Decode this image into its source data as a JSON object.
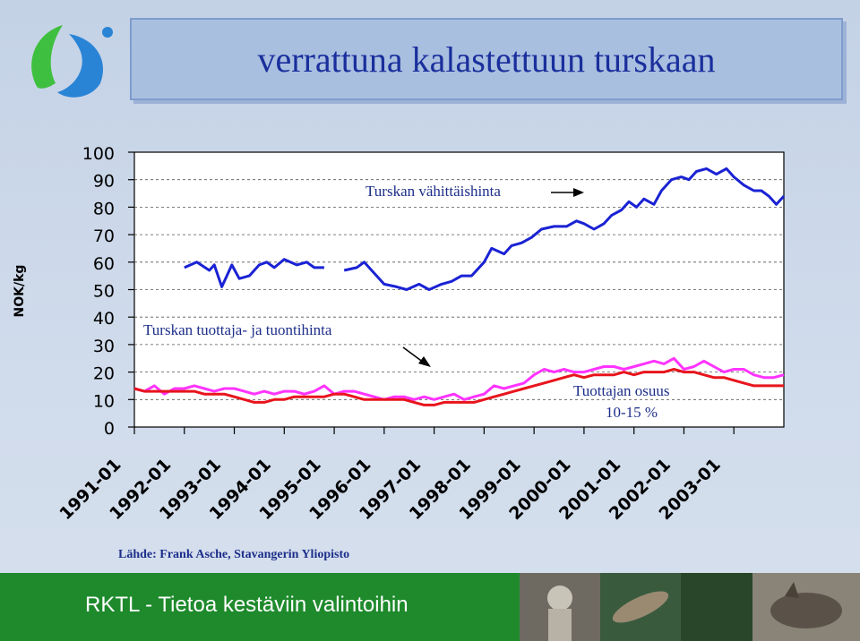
{
  "header": {
    "title": "verrattuna kalastettuun turskaan"
  },
  "source_note": "Lähde: Frank Asche, Stavangerin Yliopisto",
  "footer": {
    "text": "RKTL - Tietoa kestäviin valintoihin"
  },
  "colors": {
    "retail_line": "#1a22d4",
    "import_line": "#ff33ff",
    "producer_line": "#e8141c",
    "footer_bg": "#1e8a2c",
    "title_text": "#1a2f9c"
  },
  "chart_data": {
    "type": "line",
    "ylabel": "NOK/kg",
    "ylim": [
      0,
      100
    ],
    "yticks": [
      0,
      10,
      20,
      30,
      40,
      50,
      60,
      70,
      80,
      90,
      100
    ],
    "xticks": [
      "1991-01",
      "1992-01",
      "1993-01",
      "1994-01",
      "1995-01",
      "1996-01",
      "1997-01",
      "1998-01",
      "1999-01",
      "2000-01",
      "2001-01",
      "2002-01",
      "2003-01"
    ],
    "x_start_year": 1991,
    "grid": "horizontal-dashed",
    "annotations": [
      {
        "text": "Turskan vähittäishinta",
        "series": "Turskan vähittäishinta"
      },
      {
        "text": "Turskan tuottaja- ja tuontihinta",
        "series": "Turskan tuottaja- ja tuontihinta"
      },
      {
        "text": "Tuottajan osuus",
        "series": "producer"
      },
      {
        "text": "10-15 %",
        "series": "producer"
      }
    ],
    "series": [
      {
        "name": "Turskan vähittäishinta",
        "color": "#1a22d4",
        "segments": [
          [
            [
              1992.0,
              58
            ],
            [
              1992.25,
              60
            ],
            [
              1992.5,
              57
            ],
            [
              1992.6,
              59
            ],
            [
              1992.75,
              51
            ],
            [
              1992.95,
              59
            ],
            [
              1993.1,
              54
            ],
            [
              1993.3,
              55
            ],
            [
              1993.5,
              59
            ],
            [
              1993.65,
              60
            ],
            [
              1993.8,
              58
            ],
            [
              1994.0,
              61
            ],
            [
              1994.25,
              59
            ],
            [
              1994.45,
              60
            ],
            [
              1994.6,
              58
            ],
            [
              1994.8,
              58
            ]
          ],
          [
            [
              1995.2,
              57
            ],
            [
              1995.45,
              58
            ],
            [
              1995.6,
              60
            ],
            [
              1995.8,
              56
            ],
            [
              1996.0,
              52
            ],
            [
              1996.25,
              51
            ],
            [
              1996.45,
              50
            ],
            [
              1996.7,
              52
            ],
            [
              1996.9,
              50
            ],
            [
              1997.15,
              52
            ],
            [
              1997.35,
              53
            ],
            [
              1997.55,
              55
            ],
            [
              1997.75,
              55
            ],
            [
              1998.0,
              60
            ],
            [
              1998.15,
              65
            ],
            [
              1998.4,
              63
            ],
            [
              1998.55,
              66
            ],
            [
              1998.75,
              67
            ],
            [
              1998.95,
              69
            ],
            [
              1999.15,
              72
            ],
            [
              1999.4,
              73
            ],
            [
              1999.65,
              73
            ],
            [
              1999.85,
              75
            ],
            [
              2000.0,
              74
            ],
            [
              2000.2,
              72
            ],
            [
              2000.4,
              74
            ],
            [
              2000.55,
              77
            ],
            [
              2000.75,
              79
            ],
            [
              2000.9,
              82
            ],
            [
              2001.05,
              80
            ],
            [
              2001.2,
              83
            ],
            [
              2001.4,
              81
            ],
            [
              2001.55,
              86
            ],
            [
              2001.75,
              90
            ],
            [
              2001.95,
              91
            ],
            [
              2002.1,
              90
            ],
            [
              2002.25,
              93
            ],
            [
              2002.45,
              94
            ],
            [
              2002.65,
              92
            ],
            [
              2002.85,
              94
            ],
            [
              2003.0,
              91
            ],
            [
              2003.2,
              88
            ],
            [
              2003.4,
              86
            ],
            [
              2003.55,
              86
            ],
            [
              2003.7,
              84
            ],
            [
              2003.85,
              81
            ],
            [
              2004.0,
              84
            ]
          ]
        ]
      },
      {
        "name": "Turskan tuottaja- ja tuontihinta",
        "color": "#ff33ff",
        "segments": [
          [
            [
              1991.0,
              14
            ],
            [
              1991.2,
              13
            ],
            [
              1991.4,
              15
            ],
            [
              1991.6,
              12
            ],
            [
              1991.8,
              14
            ],
            [
              1992.0,
              14
            ],
            [
              1992.2,
              15
            ],
            [
              1992.4,
              14
            ],
            [
              1992.6,
              13
            ],
            [
              1992.8,
              14
            ],
            [
              1993.0,
              14
            ],
            [
              1993.2,
              13
            ],
            [
              1993.4,
              12
            ],
            [
              1993.6,
              13
            ],
            [
              1993.8,
              12
            ],
            [
              1994.0,
              13
            ],
            [
              1994.2,
              13
            ],
            [
              1994.4,
              12
            ],
            [
              1994.6,
              13
            ],
            [
              1994.8,
              15
            ],
            [
              1995.0,
              12
            ],
            [
              1995.2,
              13
            ],
            [
              1995.4,
              13
            ],
            [
              1995.6,
              12
            ],
            [
              1995.8,
              11
            ],
            [
              1996.0,
              10
            ],
            [
              1996.2,
              11
            ],
            [
              1996.4,
              11
            ],
            [
              1996.6,
              10
            ],
            [
              1996.8,
              11
            ],
            [
              1997.0,
              10
            ],
            [
              1997.2,
              11
            ],
            [
              1997.4,
              12
            ],
            [
              1997.6,
              10
            ],
            [
              1997.8,
              11
            ],
            [
              1998.0,
              12
            ],
            [
              1998.2,
              15
            ],
            [
              1998.4,
              14
            ],
            [
              1998.6,
              15
            ],
            [
              1998.8,
              16
            ],
            [
              1999.0,
              19
            ],
            [
              1999.2,
              21
            ],
            [
              1999.4,
              20
            ],
            [
              1999.6,
              21
            ],
            [
              1999.8,
              20
            ],
            [
              2000.0,
              20
            ],
            [
              2000.2,
              21
            ],
            [
              2000.4,
              22
            ],
            [
              2000.6,
              22
            ],
            [
              2000.8,
              21
            ],
            [
              2001.0,
              22
            ],
            [
              2001.2,
              23
            ],
            [
              2001.4,
              24
            ],
            [
              2001.6,
              23
            ],
            [
              2001.8,
              25
            ],
            [
              2002.0,
              21
            ],
            [
              2002.2,
              22
            ],
            [
              2002.4,
              24
            ],
            [
              2002.6,
              22
            ],
            [
              2002.8,
              20
            ],
            [
              2003.0,
              21
            ],
            [
              2003.2,
              21
            ],
            [
              2003.4,
              19
            ],
            [
              2003.6,
              18
            ],
            [
              2003.8,
              18
            ],
            [
              2004.0,
              19
            ]
          ]
        ]
      },
      {
        "name": "producer",
        "color": "#e8141c",
        "segments": [
          [
            [
              1991.0,
              14
            ],
            [
              1991.2,
              13
            ],
            [
              1991.4,
              13
            ],
            [
              1991.6,
              13
            ],
            [
              1991.8,
              13
            ],
            [
              1992.0,
              13
            ],
            [
              1992.2,
              13
            ],
            [
              1992.4,
              12
            ],
            [
              1992.6,
              12
            ],
            [
              1992.8,
              12
            ],
            [
              1993.0,
              11
            ],
            [
              1993.2,
              10
            ],
            [
              1993.4,
              9
            ],
            [
              1993.6,
              9
            ],
            [
              1993.8,
              10
            ],
            [
              1994.0,
              10
            ],
            [
              1994.2,
              11
            ],
            [
              1994.4,
              11
            ],
            [
              1994.6,
              11
            ],
            [
              1994.8,
              11
            ],
            [
              1995.0,
              12
            ],
            [
              1995.2,
              12
            ],
            [
              1995.4,
              11
            ],
            [
              1995.6,
              10
            ],
            [
              1995.8,
              10
            ],
            [
              1996.0,
              10
            ],
            [
              1996.2,
              10
            ],
            [
              1996.4,
              10
            ],
            [
              1996.6,
              9
            ],
            [
              1996.8,
              8
            ],
            [
              1997.0,
              8
            ],
            [
              1997.2,
              9
            ],
            [
              1997.4,
              9
            ],
            [
              1997.6,
              9
            ],
            [
              1997.8,
              9
            ],
            [
              1998.0,
              10
            ],
            [
              1998.2,
              11
            ],
            [
              1998.4,
              12
            ],
            [
              1998.6,
              13
            ],
            [
              1998.8,
              14
            ],
            [
              1999.0,
              15
            ],
            [
              1999.2,
              16
            ],
            [
              1999.4,
              17
            ],
            [
              1999.6,
              18
            ],
            [
              1999.8,
              19
            ],
            [
              2000.0,
              18
            ],
            [
              2000.2,
              19
            ],
            [
              2000.4,
              19
            ],
            [
              2000.6,
              19
            ],
            [
              2000.8,
              20
            ],
            [
              2001.0,
              19
            ],
            [
              2001.2,
              20
            ],
            [
              2001.4,
              20
            ],
            [
              2001.6,
              20
            ],
            [
              2001.8,
              21
            ],
            [
              2002.0,
              20
            ],
            [
              2002.2,
              20
            ],
            [
              2002.4,
              19
            ],
            [
              2002.6,
              18
            ],
            [
              2002.8,
              18
            ],
            [
              2003.0,
              17
            ],
            [
              2003.2,
              16
            ],
            [
              2003.4,
              15
            ],
            [
              2003.6,
              15
            ],
            [
              2003.8,
              15
            ],
            [
              2004.0,
              15
            ]
          ]
        ]
      }
    ]
  }
}
